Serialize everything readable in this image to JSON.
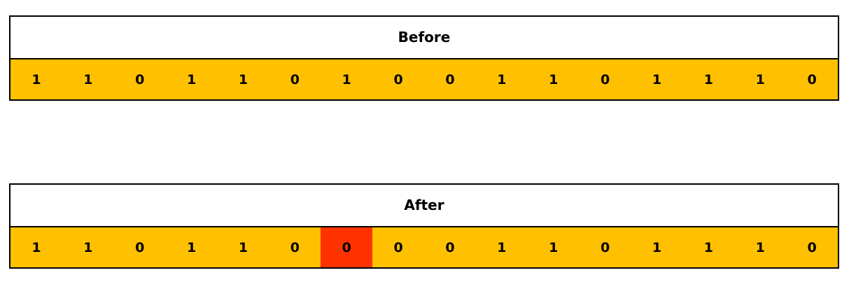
{
  "colors": {
    "bit_fill": "#FFC000",
    "highlight_fill": "#FF3300",
    "border": "#000000",
    "header_fill": "#FFFFFF"
  },
  "before": {
    "title": "Before",
    "bits": [
      "1",
      "1",
      "0",
      "1",
      "1",
      "0",
      "1",
      "0",
      "0",
      "1",
      "1",
      "0",
      "1",
      "1",
      "1",
      "0"
    ],
    "highlight_index": null
  },
  "after": {
    "title": "After",
    "bits": [
      "1",
      "1",
      "0",
      "1",
      "1",
      "0",
      "0",
      "0",
      "0",
      "1",
      "1",
      "0",
      "1",
      "1",
      "1",
      "0"
    ],
    "highlight_index": 6
  }
}
